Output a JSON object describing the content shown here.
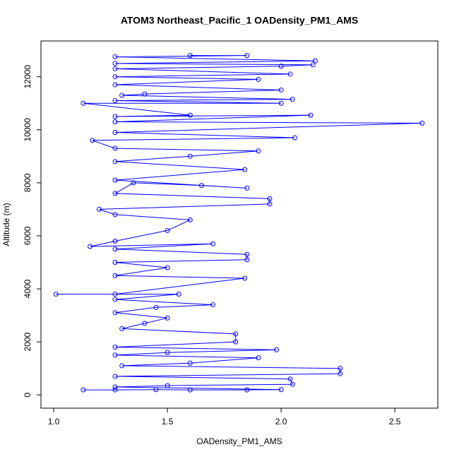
{
  "chart_data": {
    "type": "scatter",
    "title": "ATOM3 Northeast_Pacific_1 OADensity_PM1_AMS",
    "x_label": "OADensity_PM1_AMS",
    "y_label": "Altitude (m)",
    "xlim": [
      0.944,
      2.689
    ],
    "ylim": [
      -500,
      13350
    ],
    "xticks": [
      {
        "value": 1.0,
        "label": "1.0"
      },
      {
        "value": 1.5,
        "label": "1.5"
      },
      {
        "value": 2.0,
        "label": "2.0"
      },
      {
        "value": 2.5,
        "label": "2.5"
      }
    ],
    "yticks": [
      0,
      2000,
      4000,
      6000,
      8000,
      10000,
      12000
    ],
    "grid": false,
    "series": [
      {
        "color": "#0000ff",
        "x": [
          1.13,
          1.27,
          1.45,
          1.6,
          1.85,
          2.0,
          1.27,
          1.5,
          2.05,
          2.04,
          1.27,
          2.26,
          2.26,
          1.3,
          1.6,
          1.9,
          1.27,
          1.5,
          1.98,
          1.27,
          1.8,
          1.8,
          1.3,
          1.4,
          1.5,
          1.27,
          1.45,
          1.7,
          1.27,
          1.55,
          1.01,
          1.27,
          1.84,
          1.27,
          1.5,
          1.27,
          1.85,
          1.85,
          1.27,
          1.7,
          1.16,
          1.27,
          1.5,
          1.6,
          1.27,
          1.2,
          1.95,
          1.95,
          1.27,
          1.35,
          1.65,
          1.85,
          1.27,
          1.84,
          1.27,
          1.6,
          1.9,
          1.27,
          1.17,
          2.06,
          1.27,
          2.62,
          1.27,
          2.13,
          1.27,
          1.6,
          1.13,
          2.0,
          1.27,
          2.05,
          1.3,
          1.4,
          2.0,
          1.27,
          1.9,
          1.27,
          2.04,
          1.27,
          2.0,
          2.14,
          1.27,
          2.15,
          1.27,
          1.85,
          1.6
        ],
        "y": [
          190,
          190,
          200,
          190,
          190,
          200,
          300,
          350,
          400,
          600,
          700,
          800,
          1000,
          1100,
          1200,
          1400,
          1500,
          1600,
          1700,
          1800,
          2000,
          2300,
          2500,
          2700,
          2900,
          3100,
          3300,
          3400,
          3600,
          3800,
          3800,
          3800,
          4400,
          4500,
          4800,
          5000,
          5100,
          5300,
          5500,
          5700,
          5600,
          5800,
          6200,
          6600,
          6800,
          7000,
          7200,
          7400,
          7600,
          8000,
          7900,
          7800,
          8100,
          8500,
          8800,
          9000,
          9200,
          9300,
          9600,
          9700,
          9900,
          10250,
          10300,
          10550,
          10500,
          10550,
          11000,
          11000,
          11100,
          11150,
          11300,
          11350,
          11500,
          11700,
          11900,
          12000,
          12100,
          12300,
          12400,
          12450,
          12500,
          12600,
          12750,
          12800,
          12800
        ]
      }
    ]
  }
}
